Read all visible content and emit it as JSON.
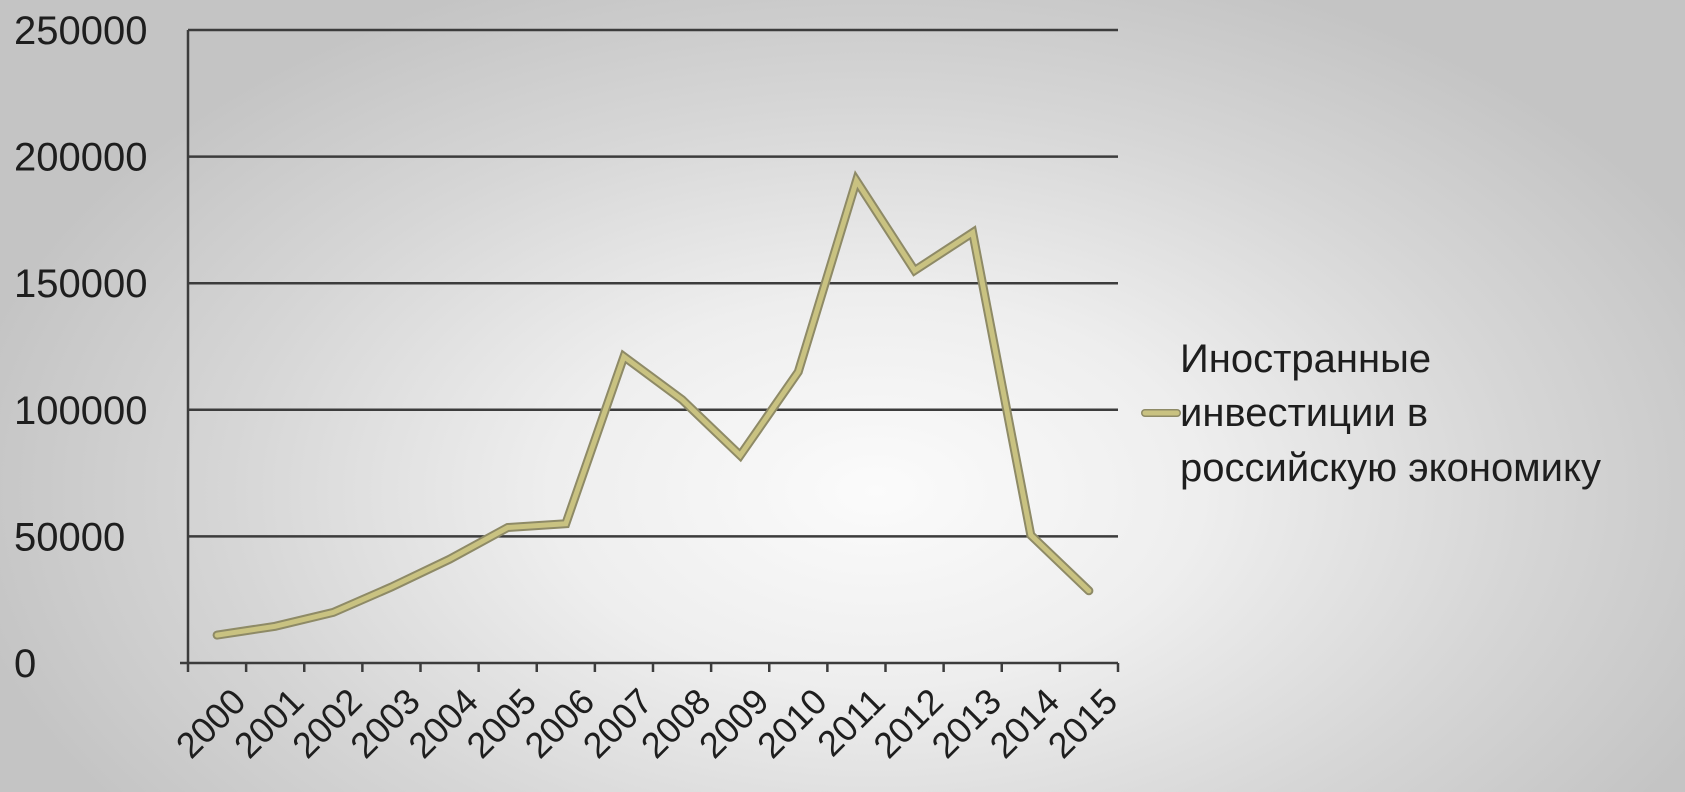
{
  "chart_data": {
    "type": "line",
    "title": "",
    "xlabel": "",
    "ylabel": "",
    "categories": [
      "2000",
      "2001",
      "2002",
      "2003",
      "2004",
      "2005",
      "2006",
      "2007",
      "2008",
      "2009",
      "2010",
      "2011",
      "2012",
      "2013",
      "2014",
      "2015"
    ],
    "series": [
      {
        "name_lines": [
          "Иностранные",
          "инвестиции в",
          "российскую экономику"
        ],
        "values": [
          11000,
          14500,
          20000,
          30000,
          41000,
          53500,
          55000,
          121000,
          104000,
          82000,
          115000,
          190500,
          155000,
          170000,
          50500,
          28500
        ]
      }
    ],
    "ylim": [
      0,
      250000
    ],
    "yticks": [
      "0",
      "50000",
      "100000",
      "150000",
      "200000",
      "250000"
    ],
    "grid": true,
    "legend_position": "right",
    "colors": {
      "series_line": "#c9c281",
      "series_outline": "#8e8a66",
      "gridline": "#3c3c3c",
      "text": "#1e1e1e"
    }
  }
}
